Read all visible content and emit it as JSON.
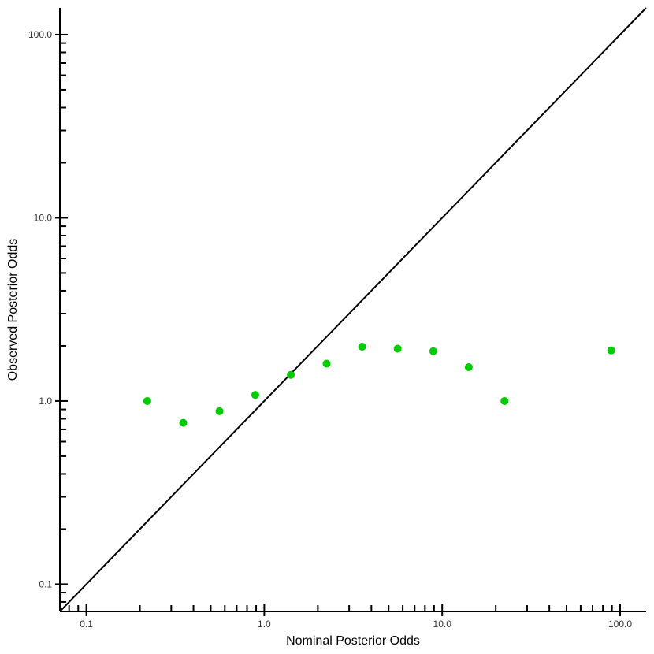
{
  "chart_data": {
    "type": "scatter",
    "xlabel": "Nominal Posterior Odds",
    "ylabel": "Observed Posterior Odds",
    "x_scale": "log",
    "y_scale": "log",
    "xlim": [
      0.071,
      140
    ],
    "ylim": [
      0.071,
      140
    ],
    "x_ticks": [
      {
        "value": 0.1,
        "label": "0.1"
      },
      {
        "value": 1,
        "label": "1.0"
      },
      {
        "value": 10,
        "label": "10.0"
      },
      {
        "value": 100,
        "label": "100.0"
      }
    ],
    "y_ticks": [
      {
        "value": 0.1,
        "label": "0.1"
      },
      {
        "value": 1,
        "label": "1.0"
      },
      {
        "value": 10,
        "label": "10.0"
      },
      {
        "value": 100,
        "label": "100.0"
      }
    ],
    "reference_line": "y = x",
    "grid": false,
    "colors": {
      "points": "#00cc00",
      "line": "#000000",
      "axes": "#000000"
    },
    "points": [
      {
        "x": 0.22,
        "y": 1.0
      },
      {
        "x": 0.35,
        "y": 0.76
      },
      {
        "x": 0.56,
        "y": 0.88
      },
      {
        "x": 0.89,
        "y": 1.08
      },
      {
        "x": 1.41,
        "y": 1.39
      },
      {
        "x": 2.24,
        "y": 1.6
      },
      {
        "x": 3.55,
        "y": 1.98
      },
      {
        "x": 5.62,
        "y": 1.93
      },
      {
        "x": 8.91,
        "y": 1.87
      },
      {
        "x": 14.1,
        "y": 1.53
      },
      {
        "x": 22.4,
        "y": 1.0
      },
      {
        "x": 89.1,
        "y": 1.89
      }
    ]
  }
}
